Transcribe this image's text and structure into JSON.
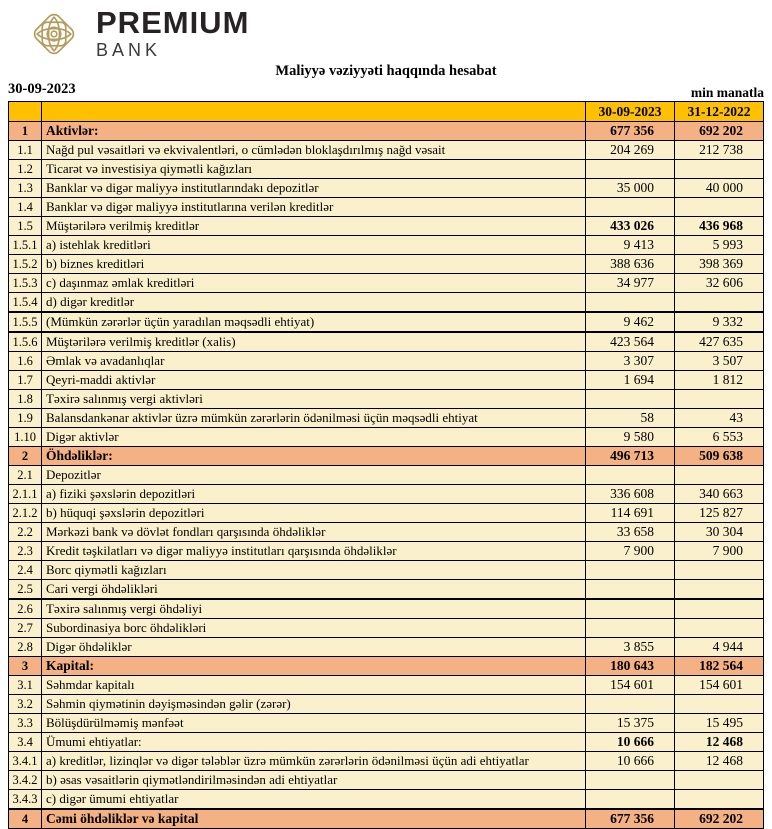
{
  "brand": {
    "name": "PREMIUM",
    "sub": "BANK",
    "logo_icon": "ornamental-knot"
  },
  "report": {
    "title": "Maliyyə vəziyyəti haqqında hesabat",
    "date": "30-09-2023",
    "unit": "min manatla"
  },
  "colors": {
    "header_bg": "#FFC000",
    "section_bg": "#F4B183",
    "row_bg": "#FBF0CC",
    "logo_gold": "#B49B5E",
    "border": "#000000"
  },
  "table": {
    "columns": [
      "30-09-2023",
      "31-12-2022"
    ],
    "rows": [
      {
        "num": "1",
        "label": "Aktivlər:",
        "v1": "677 356",
        "v2": "692 202",
        "type": "section"
      },
      {
        "num": "1.1",
        "label": "Nağd pul vəsaitləri və  ekvivalentləri, o cümlədən bloklaşdırılmış nağd vəsait",
        "v1": "204 269",
        "v2": "212 738",
        "type": "item"
      },
      {
        "num": "1.2",
        "label": "Ticarət və investisiya qiymətli kağızları",
        "v1": "",
        "v2": "",
        "type": "item"
      },
      {
        "num": "1.3",
        "label": "Banklar və digər maliyyə institutlarındakı depozitlər",
        "v1": "35 000",
        "v2": "40 000",
        "type": "item"
      },
      {
        "num": "1.4",
        "label": "Banklar və digər maliyyə institutlarına verilən kreditlər",
        "v1": "",
        "v2": "",
        "type": "item"
      },
      {
        "num": "1.5",
        "label": "Müştərilərə verilmiş kreditlər",
        "v1": "433 026",
        "v2": "436 968",
        "type": "item",
        "bold_values": true
      },
      {
        "num": "1.5.1",
        "label": "a) istehlak kreditləri",
        "v1": "9 413",
        "v2": "5 993",
        "type": "item"
      },
      {
        "num": "1.5.2",
        "label": "b) biznes kreditləri",
        "v1": "388 636",
        "v2": "398 369",
        "type": "item"
      },
      {
        "num": "1.5.3",
        "label": "c) daşınmaz əmlak kreditləri",
        "v1": "34 977",
        "v2": "32 606",
        "type": "item"
      },
      {
        "num": "1.5.4",
        "label": "d) digər kreditlər",
        "v1": "",
        "v2": "",
        "type": "item"
      },
      {
        "num": "1.5.5",
        "label": "(Mümkün zərərlər üçün yaradılan məqsədli ehtiyat)",
        "v1": "9 462",
        "v2": "9 332",
        "type": "item",
        "thick_top": true
      },
      {
        "num": "1.5.6",
        "label": "Müştərilərə verilmiş kreditlər (xalis)",
        "v1": "423 564",
        "v2": "427 635",
        "type": "item",
        "thick_top": true
      },
      {
        "num": "1.6",
        "label": "Əmlak və avadanlıqlar",
        "v1": "3 307",
        "v2": "3 507",
        "type": "item"
      },
      {
        "num": "1.7",
        "label": "Qeyri-maddi aktivlər",
        "v1": "1 694",
        "v2": "1 812",
        "type": "item"
      },
      {
        "num": "1.8",
        "label": "Təxirə salınmış vergi aktivləri",
        "v1": "",
        "v2": "",
        "type": "item"
      },
      {
        "num": "1.9",
        "label": "Balansdankənar aktivlər üzrə mümkün zərərlərin ödənilməsi üçün məqsədli ehtiyat",
        "v1": "58",
        "v2": "43",
        "type": "item"
      },
      {
        "num": "1.10",
        "label": "Digər aktivlər",
        "v1": "9 580",
        "v2": "6 553",
        "type": "item"
      },
      {
        "num": "2",
        "label": "Öhdəliklər:",
        "v1": "496 713",
        "v2": "509 638",
        "type": "section"
      },
      {
        "num": "2.1",
        "label": "Depozitlər",
        "v1": "",
        "v2": "",
        "type": "item"
      },
      {
        "num": "2.1.1",
        "label": "a) fiziki şəxslərin depozitləri",
        "v1": "336 608",
        "v2": "340 663",
        "type": "item"
      },
      {
        "num": "2.1.2",
        "label": "b) hüquqi şəxslərin depozitləri",
        "v1": "114 691",
        "v2": "125 827",
        "type": "item"
      },
      {
        "num": "2.2",
        "label": "Mərkəzi bank və dövlət fondları qarşısında öhdəliklər",
        "v1": "33 658",
        "v2": "30 304",
        "type": "item"
      },
      {
        "num": "2.3",
        "label": "Kredit təşkilatları və digər maliyyə institutları qarşısında öhdəliklər",
        "v1": "7 900",
        "v2": "7 900",
        "type": "item"
      },
      {
        "num": "2.4",
        "label": "Borc qiymətli kağızları",
        "v1": "",
        "v2": "",
        "type": "item"
      },
      {
        "num": "2.5",
        "label": "Cari vergi öhdəlikləri",
        "v1": "",
        "v2": "",
        "type": "item"
      },
      {
        "num": "2.6",
        "label": "Təxirə salınmış vergi öhdəliyi",
        "v1": "",
        "v2": "",
        "type": "item",
        "thick_top": true
      },
      {
        "num": "2.7",
        "label": "Subordinasiya borc öhdəlikləri",
        "v1": "",
        "v2": "",
        "type": "item"
      },
      {
        "num": "2.8",
        "label": "Digər öhdəliklər",
        "v1": "3 855",
        "v2": "4 944",
        "type": "item"
      },
      {
        "num": "3",
        "label": "Kapital:",
        "v1": "180 643",
        "v2": "182 564",
        "type": "section"
      },
      {
        "num": "3.1",
        "label": "Səhmdar kapitalı",
        "v1": "154 601",
        "v2": "154 601",
        "type": "item"
      },
      {
        "num": "3.2",
        "label": "Səhmin qiymətinin dəyişməsindən gəlir (zərər)",
        "v1": "",
        "v2": "",
        "type": "item"
      },
      {
        "num": "3.3",
        "label": "Bölüşdürülməmiş mənfəət",
        "v1": "15 375",
        "v2": "15 495",
        "type": "item"
      },
      {
        "num": "3.4",
        "label": "Ümumi ehtiyatlar:",
        "v1": "10 666",
        "v2": "12 468",
        "type": "item",
        "bold_values": true
      },
      {
        "num": "3.4.1",
        "label": "a) kreditlər, lizinqlər və digər tələblər üzrə mümkün zərərlərin ödənilməsi üçün adi ehtiyatlar",
        "v1": "10 666",
        "v2": "12 468",
        "type": "item"
      },
      {
        "num": "3.4.2",
        "label": "b) əsas vəsaitlərin qiymətləndirilməsindən adi ehtiyatlar",
        "v1": "",
        "v2": "",
        "type": "item"
      },
      {
        "num": "3.4.3",
        "label": "c) digər ümumi ehtiyatlar",
        "v1": "",
        "v2": "",
        "type": "item"
      },
      {
        "num": "4",
        "label": "Cəmi öhdəliklər və kapital",
        "v1": "677 356",
        "v2": "692 202",
        "type": "section",
        "thick_top": true
      }
    ]
  }
}
